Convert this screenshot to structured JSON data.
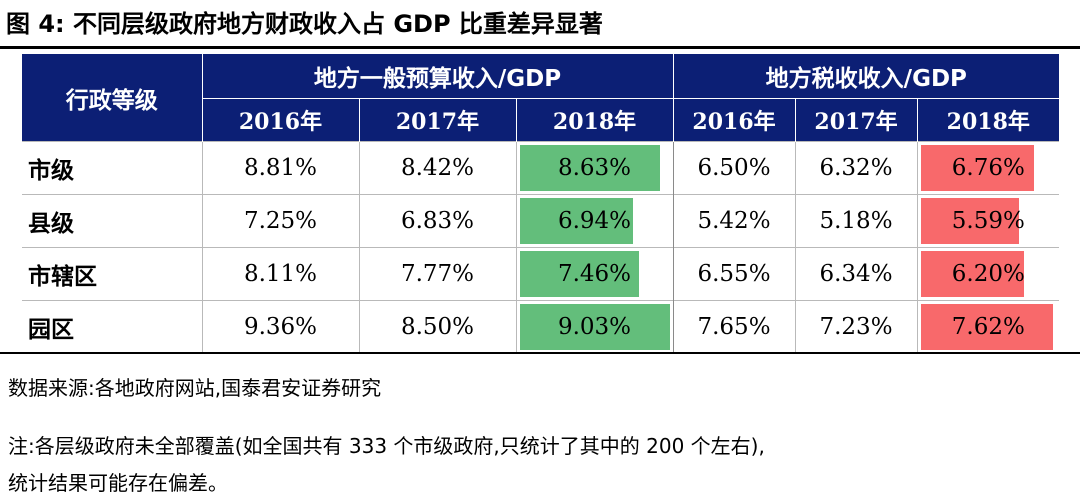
{
  "title": "图 4:  不同层级政府地方财政收入占 GDP 比重差异显著",
  "table": {
    "level_header": "行政等级",
    "groups": [
      "地方一般预算收入/GDP",
      "地方税收收入/GDP"
    ],
    "years": [
      "2016年",
      "2017年",
      "2018年",
      "2016年",
      "2017年",
      "2018年"
    ],
    "rows": [
      {
        "level": "市级",
        "values": [
          "8.81%",
          "8.42%",
          "8.63%",
          "6.50%",
          "6.32%",
          "6.76%"
        ],
        "bar_green": 0.935,
        "bar_red": 0.83
      },
      {
        "level": "县级",
        "values": [
          "7.25%",
          "6.83%",
          "6.94%",
          "5.42%",
          "5.18%",
          "5.59%"
        ],
        "bar_green": 0.75,
        "bar_red": 0.72
      },
      {
        "level": "市辖区",
        "values": [
          "8.11%",
          "7.77%",
          "7.46%",
          "6.55%",
          "6.34%",
          "6.20%"
        ],
        "bar_green": 0.79,
        "bar_red": 0.76
      },
      {
        "level": "园区",
        "values": [
          "9.36%",
          "8.50%",
          "9.03%",
          "7.65%",
          "7.23%",
          "7.62%"
        ],
        "bar_green": 1.0,
        "bar_red": 0.97
      }
    ]
  },
  "colors": {
    "header_bg": "#0c1f75",
    "bar_green": "#63be7b",
    "bar_red": "#f8696b"
  },
  "source": "数据来源:各地政府网站,国泰君安证券研究",
  "note_line1": "注:各层级政府未全部覆盖(如全国共有 333 个市级政府,只统计了其中的 200 个左右),",
  "note_line2": "统计结果可能存在偏差。"
}
